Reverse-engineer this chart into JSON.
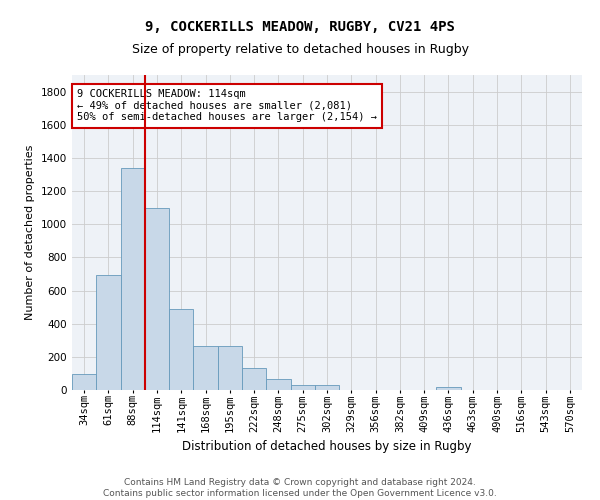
{
  "title1": "9, COCKERILLS MEADOW, RUGBY, CV21 4PS",
  "title2": "Size of property relative to detached houses in Rugby",
  "xlabel": "Distribution of detached houses by size in Rugby",
  "ylabel": "Number of detached properties",
  "annotation_line1": "9 COCKERILLS MEADOW: 114sqm",
  "annotation_line2": "← 49% of detached houses are smaller (2,081)",
  "annotation_line3": "50% of semi-detached houses are larger (2,154) →",
  "categories": [
    "34sqm",
    "61sqm",
    "88sqm",
    "114sqm",
    "141sqm",
    "168sqm",
    "195sqm",
    "222sqm",
    "248sqm",
    "275sqm",
    "302sqm",
    "329sqm",
    "356sqm",
    "382sqm",
    "409sqm",
    "436sqm",
    "463sqm",
    "490sqm",
    "516sqm",
    "543sqm",
    "570sqm"
  ],
  "values": [
    95,
    695,
    1340,
    1095,
    490,
    265,
    265,
    130,
    65,
    30,
    30,
    0,
    0,
    0,
    0,
    20,
    0,
    0,
    0,
    0,
    0
  ],
  "bar_color": "#c8d8e8",
  "bar_edge_color": "#6699bb",
  "vline_color": "#cc0000",
  "vline_bar_index": 3,
  "annotation_box_color": "#cc0000",
  "ylim": [
    0,
    1900
  ],
  "yticks": [
    0,
    200,
    400,
    600,
    800,
    1000,
    1200,
    1400,
    1600,
    1800
  ],
  "grid_color": "#cccccc",
  "bg_color": "#eef2f7",
  "footer": "Contains HM Land Registry data © Crown copyright and database right 2024.\nContains public sector information licensed under the Open Government Licence v3.0.",
  "title1_fontsize": 10,
  "title2_fontsize": 9,
  "xlabel_fontsize": 8.5,
  "ylabel_fontsize": 8,
  "tick_fontsize": 7.5,
  "annotation_fontsize": 7.5,
  "footer_fontsize": 6.5
}
